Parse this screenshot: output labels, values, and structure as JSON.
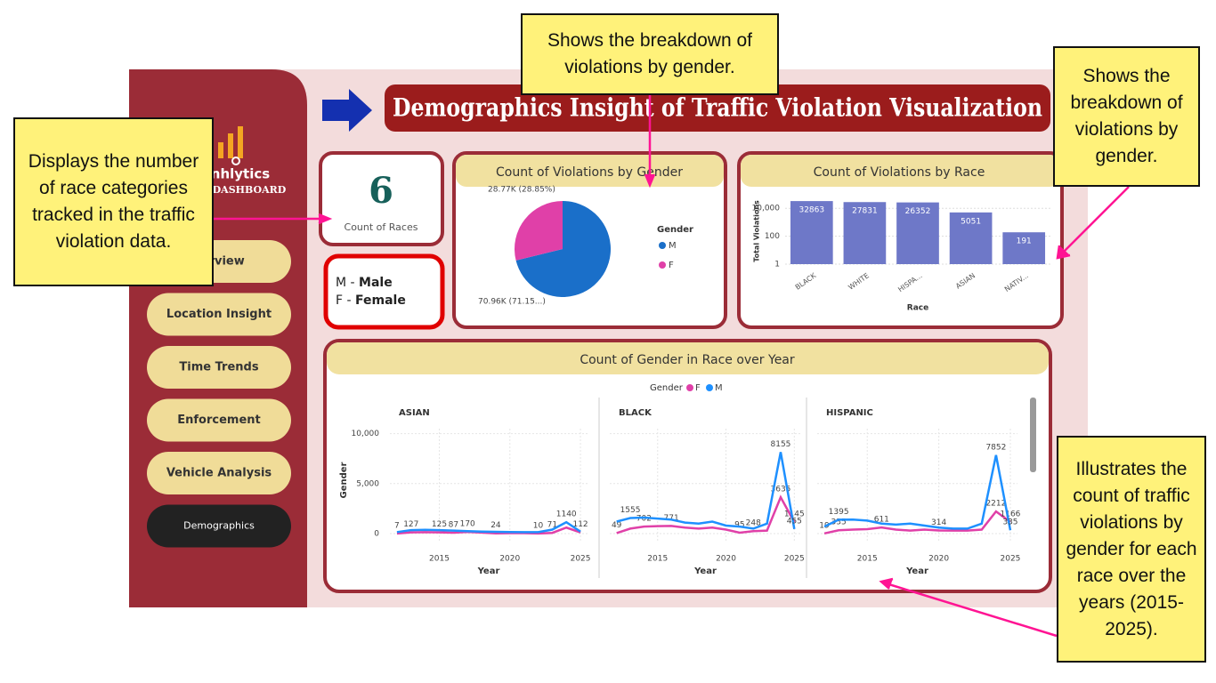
{
  "annotations": [
    "Shows the breakdown of violations by gender.",
    "Displays the number of race categories tracked in the traffic violation data.",
    "Shows the breakdown of violations by gender.",
    "Illustrates the count of traffic violations by gender for each race over the years (2015-2025)."
  ],
  "sidebar": {
    "logo_text": "nhlytics",
    "logo_subtext": "DASHBOARD",
    "nav": [
      "verview",
      "Location Insight",
      "Time Trends",
      "Enforcement",
      "Vehicle Analysis",
      "Demographics"
    ]
  },
  "title": "Demographics Insight of Traffic Violation Visualization",
  "kpi": {
    "value": 6,
    "label": "Count of Races"
  },
  "gender_key": {
    "separator": " - ",
    "items": [
      {
        "code": "M",
        "name": "Male"
      },
      {
        "code": "F",
        "name": "Female"
      }
    ]
  },
  "pie_chart": {
    "type": "pie",
    "title": "Count of Violations by Gender",
    "legend_title": "Gender",
    "categories": [
      "M",
      "F"
    ],
    "values": [
      70960,
      28770
    ],
    "value_labels": [
      "70.96K (71.15...)",
      "28.77K (28.85%)"
    ],
    "colors": [
      "#1a6fc9",
      "#e040a8"
    ]
  },
  "bar_chart": {
    "type": "bar",
    "title": "Count of Violations by Race",
    "ylabel": "Total Violations",
    "xlabel": "Race",
    "categories": [
      "BLACK",
      "WHITE",
      "HISPA...",
      "ASIAN",
      "NATIV..."
    ],
    "values": [
      32863,
      27831,
      26352,
      5051,
      191
    ],
    "color": "#6e78c8",
    "log_scale": true,
    "ylim": [
      1,
      60000
    ],
    "yticks": [
      1,
      100,
      {
        "value": 10000,
        "label": "10,000"
      }
    ],
    "grid": true
  },
  "line_chart": {
    "type": "line",
    "title": "Count of Gender in Race over Year",
    "legend_title": "Gender",
    "xlabel": "Year",
    "ylabel": "Gender",
    "series": [
      {
        "name": "F",
        "color": "#e040a8"
      },
      {
        "name": "M",
        "color": "#1e90ff"
      }
    ],
    "x": [
      2012,
      2013,
      2014,
      2015,
      2016,
      2017,
      2018,
      2019,
      2020,
      2021,
      2022,
      2023,
      2024,
      2025
    ],
    "xlim": [
      2011.5,
      2025.5
    ],
    "xticks": [
      2015,
      2020,
      2025
    ],
    "ylim": [
      0,
      10500
    ],
    "yticks": [
      0,
      {
        "value": 5000,
        "label": "5,000"
      },
      {
        "value": 10000,
        "label": "10,000"
      }
    ],
    "panels": [
      {
        "name": "ASIAN",
        "series": [
          {
            "values": [
              7,
              127,
              150,
              125,
              87,
              170,
              100,
              24,
              50,
              40,
              10,
              71,
              600,
              112
            ],
            "value_labels": [
              "7",
              "127",
              null,
              "125",
              "87",
              "170",
              null,
              "24",
              null,
              null,
              "10",
              "71",
              null,
              "112"
            ]
          },
          {
            "values": [
              150,
              350,
              380,
              350,
              300,
              250,
              200,
              180,
              160,
              150,
              150,
              400,
              1140,
              200
            ],
            "value_labels": [
              null,
              null,
              null,
              null,
              null,
              null,
              null,
              null,
              null,
              null,
              null,
              null,
              "1140",
              null
            ]
          }
        ]
      },
      {
        "name": "BLACK",
        "series": [
          {
            "values": [
              49,
              500,
              702,
              750,
              771,
              600,
              500,
              600,
              400,
              95,
              248,
              300,
              3635,
              1145
            ],
            "value_labels": [
              "49",
              null,
              "702",
              null,
              "771",
              null,
              null,
              null,
              null,
              "95",
              "248",
              null,
              "3635",
              "1145"
            ]
          },
          {
            "values": [
              1200,
              1555,
              1600,
              1500,
              1400,
              1100,
              1000,
              1200,
              800,
              700,
              500,
              1000,
              8155,
              455
            ],
            "value_labels": [
              null,
              "1555",
              null,
              null,
              null,
              null,
              null,
              null,
              null,
              null,
              null,
              null,
              "8155",
              "455"
            ]
          }
        ]
      },
      {
        "name": "HISPANIC",
        "series": [
          {
            "values": [
              19,
              335,
              400,
              450,
              611,
              400,
              300,
              400,
              314,
              300,
              300,
              400,
              2212,
              1166
            ],
            "value_labels": [
              "19",
              "335",
              null,
              null,
              "611",
              null,
              null,
              null,
              "314",
              null,
              null,
              null,
              "2212",
              "1166"
            ]
          },
          {
            "values": [
              700,
              1395,
              1400,
              1300,
              1000,
              900,
              1000,
              800,
              600,
              500,
              500,
              1000,
              7852,
              335
            ],
            "value_labels": [
              null,
              "1395",
              null,
              null,
              null,
              null,
              null,
              null,
              null,
              null,
              null,
              null,
              "7852",
              "335"
            ]
          }
        ]
      }
    ]
  }
}
